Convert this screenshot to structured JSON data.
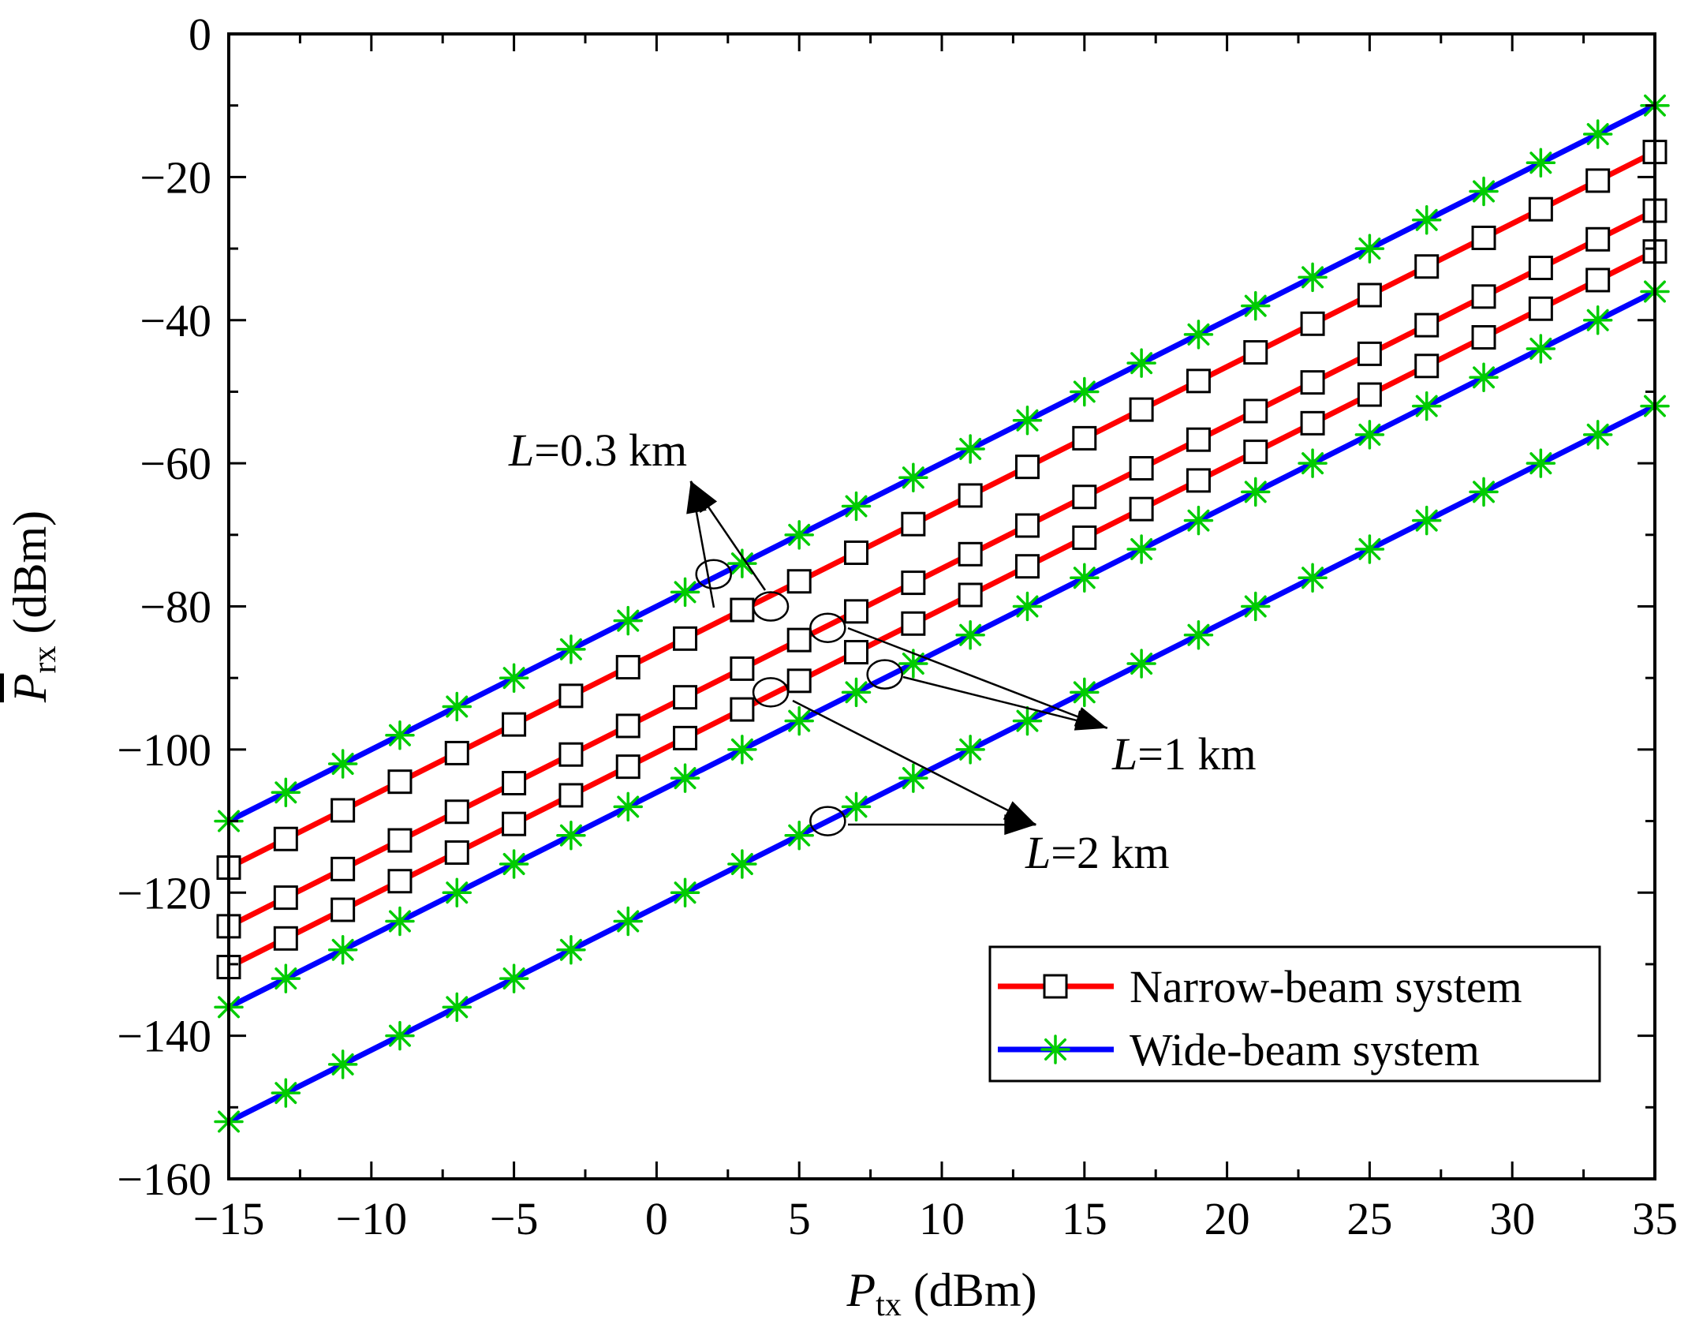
{
  "chart_data": {
    "type": "line",
    "xlabel": {
      "symbol": "P",
      "sub": "tx",
      "unit": " (dBm)"
    },
    "ylabel": {
      "symbol": "P",
      "sub": "rx",
      "unit": " (dBm)",
      "overline": true
    },
    "xlim": [
      -15,
      35
    ],
    "ylim": [
      -160,
      0
    ],
    "xticks": [
      -15,
      -10,
      -5,
      0,
      5,
      10,
      15,
      20,
      25,
      30,
      35
    ],
    "xtick_labels": [
      "−15",
      "−10",
      "−5",
      "0",
      "5",
      "10",
      "15",
      "20",
      "25",
      "30",
      "35"
    ],
    "yticks": [
      0,
      -20,
      -40,
      -60,
      -80,
      -100,
      -120,
      -140,
      -160
    ],
    "ytick_labels": [
      "0",
      "−20",
      "−40",
      "−60",
      "−80",
      "−100",
      "−120",
      "−140",
      "−160"
    ],
    "marker_x": [
      -15,
      -13,
      -11,
      -9,
      -7,
      -5,
      -3,
      -1,
      1,
      3,
      5,
      7,
      9,
      11,
      13,
      15,
      17,
      19,
      21,
      23,
      25,
      27,
      29,
      31,
      33,
      35
    ],
    "series": [
      {
        "name": "Narrow-beam system",
        "distance": "0.3 km",
        "color": "#ff0000",
        "marker": "square",
        "x": [
          -15,
          35
        ],
        "y": [
          -116.5,
          -16.5
        ]
      },
      {
        "name": "Narrow-beam system",
        "distance": "1 km",
        "color": "#ff0000",
        "marker": "square",
        "x": [
          -15,
          35
        ],
        "y": [
          -124.7,
          -24.7
        ]
      },
      {
        "name": "Narrow-beam system",
        "distance": "2 km",
        "color": "#ff0000",
        "marker": "square",
        "x": [
          -15,
          35
        ],
        "y": [
          -130.4,
          -30.4
        ]
      },
      {
        "name": "Wide-beam system",
        "distance": "0.3 km",
        "color": "#0000ff",
        "marker": "asterisk",
        "x": [
          -15,
          35
        ],
        "y": [
          -110,
          -10
        ]
      },
      {
        "name": "Wide-beam system",
        "distance": "1 km",
        "color": "#0000ff",
        "marker": "asterisk",
        "x": [
          -15,
          35
        ],
        "y": [
          -136,
          -36
        ]
      },
      {
        "name": "Wide-beam system",
        "distance": "2 km",
        "color": "#0000ff",
        "marker": "asterisk",
        "x": [
          -15,
          35
        ],
        "y": [
          -152,
          -52
        ]
      }
    ],
    "annotations": [
      {
        "italic": "L",
        "text": "=0.3 km",
        "ellipses": [
          [
            2,
            -75.5
          ],
          [
            4,
            -80
          ]
        ],
        "arrow_to": [
          1.2,
          -62.5
        ]
      },
      {
        "italic": "L",
        "text": "=1 km",
        "ellipses": [
          [
            6,
            -83
          ],
          [
            8,
            -89.5
          ]
        ],
        "arrow_to": [
          15.8,
          -97
        ]
      },
      {
        "italic": "L",
        "text": "=2 km",
        "ellipses": [
          [
            4,
            -92
          ],
          [
            6,
            -110
          ]
        ],
        "arrow_to": [
          13.3,
          -110.5
        ]
      }
    ],
    "legend": {
      "position": "bottom-right",
      "entries": [
        {
          "label": "Narrow-beam system",
          "line_color": "#ff0000",
          "marker": "square"
        },
        {
          "label": "Wide-beam system",
          "line_color": "#0000ff",
          "marker": "asterisk"
        }
      ]
    },
    "marker_colors": {
      "square_edge": "#000000",
      "square_fill": "#ffffff",
      "asterisk": "#00cc00"
    }
  }
}
